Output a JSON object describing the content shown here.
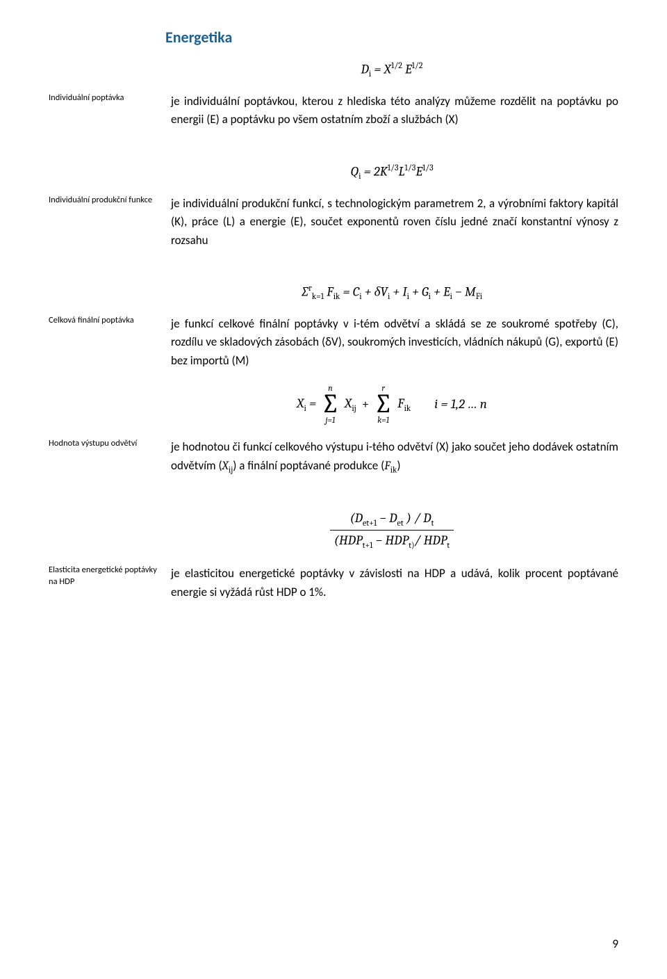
{
  "title": "Energetika",
  "page_number": "9",
  "formulas": {
    "f1": "D<sub>i</sub> =  X<sup>1/2</sup> E<sup>1/2</sup>",
    "f2": "Q<sub>i</sub> = 2K<sup>1/3</sup>L<sup>1/3</sup>E<sup>1/3</sup>",
    "f3_inline": "∑<sup>r</sup><sub>k=1</sub> F<sub>ik</sub> =  C<sub>i</sub> +  δV<sub>i</sub> +  I<sub>i</sub> + G<sub>i</sub> + E<sub>i</sub> − M<sub>Fi</sub>",
    "f4_lhs": "X<sub>i</sub>  = ",
    "f4_sum1_top": "n",
    "f4_sum1_bot": "j=1",
    "f4_sum1_term": "X<sub>ij</sub>",
    "f4_plus": "+",
    "f4_sum2_top": "r",
    "f4_sum2_bot": "k=1",
    "f4_sum2_term": "F<sub>ik</sub>",
    "f4_idx": "i = 1,2 … n",
    "f5_num": "(D<sub>et+1</sub> − D<sub>et</sub> ) / D<sub>t</sub>",
    "f5_den": "(HDP<sub>t+1</sub> − HDP<sub>t)</sub>/ HDP<sub>t</sub>"
  },
  "sections": [
    {
      "label": "Individuální poptávka",
      "text": "je individuální poptávkou, kterou z hlediska této analýzy můžeme rozdělit na poptávku po energii (E) a poptávku po všem ostatním zboží a službách (X)"
    },
    {
      "label": "Individuální produkční funkce",
      "text": "je individuální produkční funkcí, s technologickým parametrem 2, a výrobními faktory kapitál (K), práce (L) a energie (E), součet exponentů roven číslu jedné značí konstantní výnosy z rozsahu"
    },
    {
      "label": "Celková finální poptávka",
      "text": "je funkcí celkové finální poptávky v i-tém odvětví a skládá se ze soukromé spotřeby (C), rozdílu ve skladových zásobách (δV), soukromých investicích, vládních nákupů (G), exportů (E) bez importů (M)"
    },
    {
      "label": "Hodnota výstupu odvětví",
      "text_html": "je hodnotou či funkcí celkového výstupu i-tého odvětví (X) jako součet jeho dodávek ostatním odvětvím (<span class=\"math\">X<sub>ij</sub></span>) a finální poptávané produkce (<span class=\"math\">F<sub>ik</sub></span>)"
    },
    {
      "label": "Elasticita energetické poptávky na HDP",
      "text": "je elasticitou energetické poptávky v závislosti na HDP a udává, kolik procent poptávané energie si vyžádá růst HDP o 1%."
    }
  ]
}
